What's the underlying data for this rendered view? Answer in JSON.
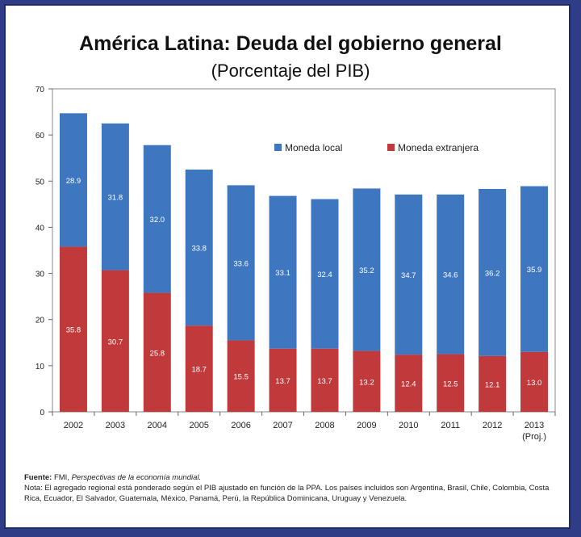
{
  "header": {
    "title": "América Latina: Deuda del gobierno general",
    "subtitle": "(Porcentaje del PIB)"
  },
  "chart_data": {
    "type": "bar",
    "stacked": true,
    "title": "América Latina: Deuda del gobierno general",
    "subtitle": "(Porcentaje del PIB)",
    "categories": [
      "2002",
      "2003",
      "2004",
      "2005",
      "2006",
      "2007",
      "2008",
      "2009",
      "2010",
      "2011",
      "2012",
      "2013"
    ],
    "category_sublabels": [
      "",
      "",
      "",
      "",
      "",
      "",
      "",
      "",
      "",
      "",
      "",
      "(Proj.)"
    ],
    "series": [
      {
        "name": "Moneda extranjera",
        "color": "#c0393b",
        "values": [
          35.8,
          30.7,
          25.8,
          18.7,
          15.5,
          13.7,
          13.7,
          13.2,
          12.4,
          12.5,
          12.1,
          13.0
        ],
        "labels": [
          "35.8",
          "30.7",
          "25.8",
          "18.7",
          "15.5",
          "13.7",
          "13.7",
          "13.2",
          "12.4",
          "12.5",
          "12.1",
          "13.0"
        ]
      },
      {
        "name": "Moneda local",
        "color": "#3f76c0",
        "values": [
          28.9,
          31.8,
          32.0,
          33.8,
          33.6,
          33.1,
          32.4,
          35.2,
          34.7,
          34.6,
          36.2,
          35.9
        ],
        "labels": [
          "28.9",
          "31.8",
          "32.0",
          "33.8",
          "33.6",
          "33.1",
          "32.4",
          "35.2",
          "34.7",
          "34.6",
          "36.2",
          "35.9"
        ]
      }
    ],
    "y_ticks": [
      "0",
      "10",
      "20",
      "30",
      "40",
      "50",
      "60",
      "70"
    ],
    "ylim": [
      0,
      70
    ],
    "legend_position": "top-right",
    "grid": false
  },
  "footer": {
    "source_label": "Fuente:",
    "source_org": "FMI,",
    "source_pub": "Perspectivas de la economía mundial.",
    "note": "Nota: El agregado regional está ponderado según el PIB ajustado en función de la PPA. Los países incluidos son Argentina, Brasil, Chile, Colombia, Costa Rica, Ecuador, El Salvador, Guatemala, México, Panamá, Perú, la República Dominicana, Uruguay y Venezuela."
  }
}
